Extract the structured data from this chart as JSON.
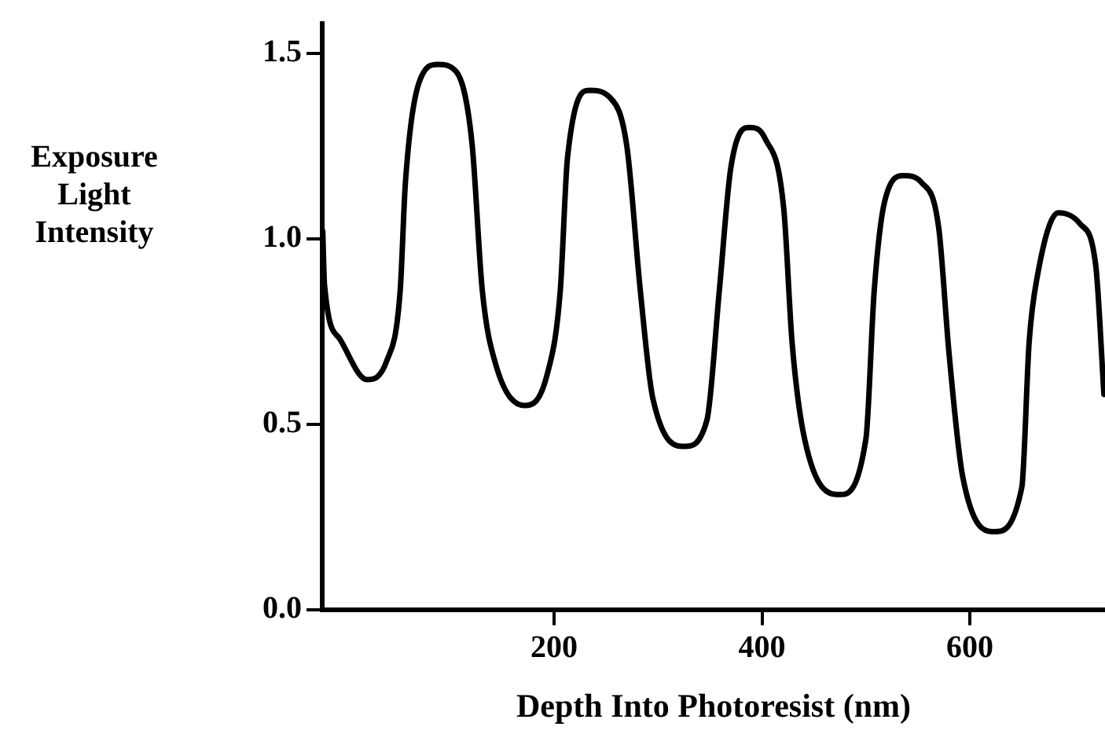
{
  "chart_data": {
    "type": "line",
    "xlabel": "Depth Into Photoresist (nm)",
    "ylabel": "Exposure Light Intensity",
    "xlim": [
      -23,
      730
    ],
    "xticks": [
      200,
      400,
      600
    ],
    "ylim": [
      0,
      1.58
    ],
    "yticks": [
      {
        "value": 0,
        "label": "0.0"
      },
      {
        "value": 0.5,
        "label": "0.5"
      },
      {
        "value": 1,
        "label": "1.0"
      },
      {
        "value": 1.5,
        "label": "1.5"
      }
    ],
    "grid": false,
    "legend": false,
    "marker": "none",
    "line_style": "solid",
    "series": [
      {
        "color": "#000000",
        "x": [
          -22.5,
          -20.8,
          -6.2,
          20,
          39,
          52,
          57,
          70,
          88,
          106,
          121,
          131,
          144,
          172,
          193,
          206,
          213,
          234,
          254,
          270,
          283,
          295,
          326,
          347,
          359,
          370,
          388,
          403,
          421,
          429,
          441,
          475,
          500,
          508,
          518,
          536,
          554,
          570,
          580,
          593,
          624,
          650,
          657,
          665,
          685,
          706,
          721,
          729
        ],
        "values": [
          1.02,
          0.875,
          0.73,
          0.62,
          0.67,
          0.86,
          1.15,
          1.42,
          1.47,
          1.45,
          1.26,
          0.86,
          0.66,
          0.55,
          0.63,
          0.86,
          1.22,
          1.4,
          1.38,
          1.25,
          0.86,
          0.57,
          0.44,
          0.51,
          0.86,
          1.19,
          1.3,
          1.27,
          1.08,
          0.72,
          0.46,
          0.31,
          0.46,
          0.86,
          1.1,
          1.17,
          1.15,
          1.03,
          0.69,
          0.36,
          0.21,
          0.33,
          0.72,
          0.9,
          1.07,
          1.04,
          0.93,
          0.58
        ]
      }
    ]
  }
}
